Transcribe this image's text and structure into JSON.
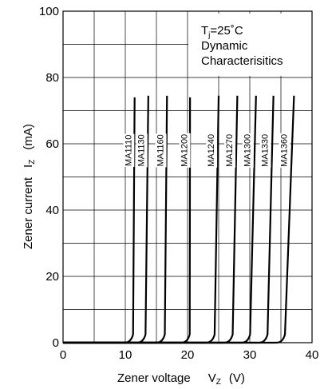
{
  "chart_data": {
    "type": "line",
    "title": "",
    "xlabel": {
      "text": "Zener voltage",
      "symbol": "V",
      "sub": "Z",
      "unit": "(V)"
    },
    "ylabel": {
      "text": "Zener current",
      "symbol": "I",
      "sub": "Z",
      "unit": "(mA)"
    },
    "xlim": [
      0,
      40
    ],
    "ylim": [
      0,
      100
    ],
    "x_ticks": [
      0,
      10,
      20,
      30,
      40
    ],
    "y_ticks": [
      0,
      20,
      40,
      60,
      80,
      100
    ],
    "grid": true,
    "conditions": {
      "line1_main": "T",
      "line1_sub": "j",
      "line1_rest": "=25˚C",
      "line2": "Dynamic",
      "line3": "Characterisitics"
    },
    "series": [
      {
        "name": "MA1110",
        "knee": 10.9,
        "top_x": 11.5,
        "top_y": 74
      },
      {
        "name": "MA1130",
        "knee": 12.9,
        "top_x": 13.7,
        "top_y": 74.5
      },
      {
        "name": "MA1160",
        "knee": 16.0,
        "top_x": 16.7,
        "top_y": 74.5
      },
      {
        "name": "MA1200",
        "knee": 20.0,
        "top_x": 20.4,
        "top_y": 74
      },
      {
        "name": "MA1240",
        "knee": 24.0,
        "top_x": 25.0,
        "top_y": 74.5
      },
      {
        "name": "MA1270",
        "knee": 26.9,
        "top_x": 28.0,
        "top_y": 74.5
      },
      {
        "name": "MA1300",
        "knee": 29.7,
        "top_x": 31.0,
        "top_y": 74.5
      },
      {
        "name": "MA1330",
        "knee": 32.5,
        "top_x": 33.8,
        "top_y": 74.5
      },
      {
        "name": "MA1360",
        "knee": 35.3,
        "top_x": 37.1,
        "top_y": 74.5
      }
    ]
  }
}
